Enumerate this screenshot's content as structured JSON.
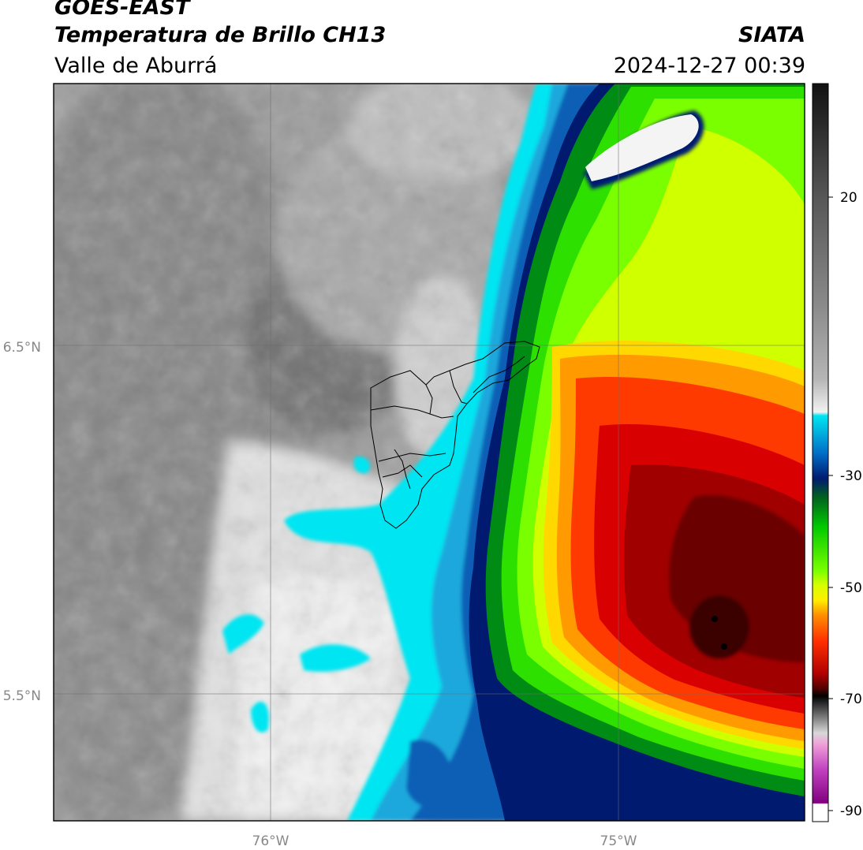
{
  "header": {
    "satellite": "GOES-EAST",
    "product": "Temperatura de Brillo CH13",
    "region": "Valle de Aburrá",
    "agency": "SIATA",
    "datetime": "2024-12-27 00:39"
  },
  "map": {
    "lat_labels": [
      "6.5°N",
      "5.5°N"
    ],
    "lon_labels": [
      "76°W",
      "75°W"
    ]
  },
  "colorbar": {
    "tick_labels": [
      "20",
      "-30",
      "-50",
      "-70",
      "-90"
    ]
  },
  "colors": {
    "warm_gray": "#8a8a8a",
    "clear_light": "#efefef",
    "cyan": "#00e5f2",
    "blue": "#0060c0",
    "navy": "#00207a",
    "green": "#00c800",
    "lime": "#7aff00",
    "yellow": "#ffee00",
    "orange": "#ff8800",
    "red": "#e80000",
    "dark_red": "#8a0000",
    "magenta": "#c040c0"
  }
}
